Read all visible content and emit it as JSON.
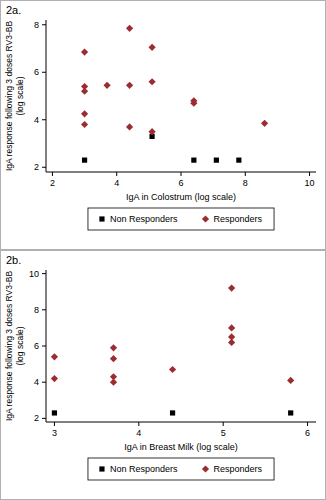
{
  "chart_data": [
    {
      "type": "scatter",
      "title": "2a.",
      "x_label": "IgA in Colostrum (log scale)",
      "y_label": [
        "IgA response following 3 doses RV3-BB",
        "(log scale)"
      ],
      "xlim": [
        1.8,
        10.2
      ],
      "ylim": [
        1.8,
        8.2
      ],
      "xticks": [
        2,
        4,
        6,
        8,
        10
      ],
      "yticks": [
        2,
        4,
        6,
        8
      ],
      "legend": "bottom",
      "series": [
        {
          "name": "Non Responders",
          "color": "#000000",
          "marker": "square",
          "x": [
            3.0,
            5.1,
            6.4,
            7.1,
            7.8
          ],
          "values": [
            2.3,
            3.3,
            2.3,
            2.3,
            2.3
          ]
        },
        {
          "name": "Responders",
          "color": "#9b2d30",
          "marker": "diamond",
          "x": [
            3.0,
            3.0,
            3.0,
            3.0,
            3.0,
            3.7,
            4.4,
            4.4,
            4.4,
            5.1,
            5.1,
            5.1,
            6.4,
            6.4,
            8.6
          ],
          "values": [
            6.85,
            5.4,
            5.2,
            4.25,
            3.8,
            5.45,
            7.85,
            5.45,
            3.7,
            7.05,
            5.6,
            3.5,
            4.8,
            4.7,
            3.85
          ]
        }
      ]
    },
    {
      "type": "scatter",
      "title": "2b.",
      "x_label": "IgA in Breast Milk (log scale)",
      "y_label": [
        "IgA response following 3 doses RV3-BB",
        "(log scale)"
      ],
      "xlim": [
        2.9,
        6.1
      ],
      "ylim": [
        1.8,
        10.2
      ],
      "xticks": [
        3,
        4,
        5,
        6
      ],
      "yticks": [
        2,
        4,
        6,
        8,
        10
      ],
      "legend": "bottom",
      "series": [
        {
          "name": "Non Responders",
          "color": "#000000",
          "marker": "square",
          "x": [
            3.0,
            4.4,
            5.8
          ],
          "values": [
            2.3,
            2.3,
            2.3
          ]
        },
        {
          "name": "Responders",
          "color": "#9b2d30",
          "marker": "diamond",
          "x": [
            3.0,
            3.0,
            3.7,
            3.7,
            3.7,
            3.7,
            4.4,
            5.1,
            5.1,
            5.1,
            5.1,
            5.8
          ],
          "values": [
            5.4,
            4.2,
            5.9,
            5.3,
            4.3,
            4.0,
            4.7,
            9.2,
            7.0,
            6.5,
            6.2,
            4.1
          ]
        }
      ]
    }
  ]
}
